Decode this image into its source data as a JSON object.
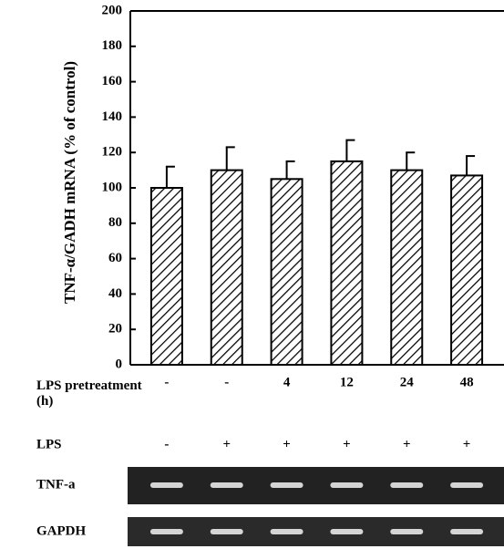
{
  "chart_data": {
    "type": "bar",
    "y_label": "TNF-α/GADH mRNA (% of control)",
    "x_label": "LPS pretreatment (h)",
    "categories": [
      "-",
      "-",
      "4",
      "12",
      "24",
      "48"
    ],
    "values": [
      100,
      110,
      105,
      115,
      110,
      107
    ],
    "errors": [
      12,
      13,
      10,
      12,
      10,
      11
    ],
    "ylim": [
      0,
      200
    ],
    "yticks": [
      0,
      20,
      40,
      60,
      80,
      100,
      120,
      140,
      160,
      180,
      200
    ],
    "color": "#000000",
    "hatch": true
  },
  "lps": {
    "label": "LPS",
    "values": [
      "-",
      "+",
      "+",
      "+",
      "+",
      "+"
    ]
  },
  "gel": {
    "rows": [
      "TNF-a",
      "GAPDH"
    ]
  }
}
